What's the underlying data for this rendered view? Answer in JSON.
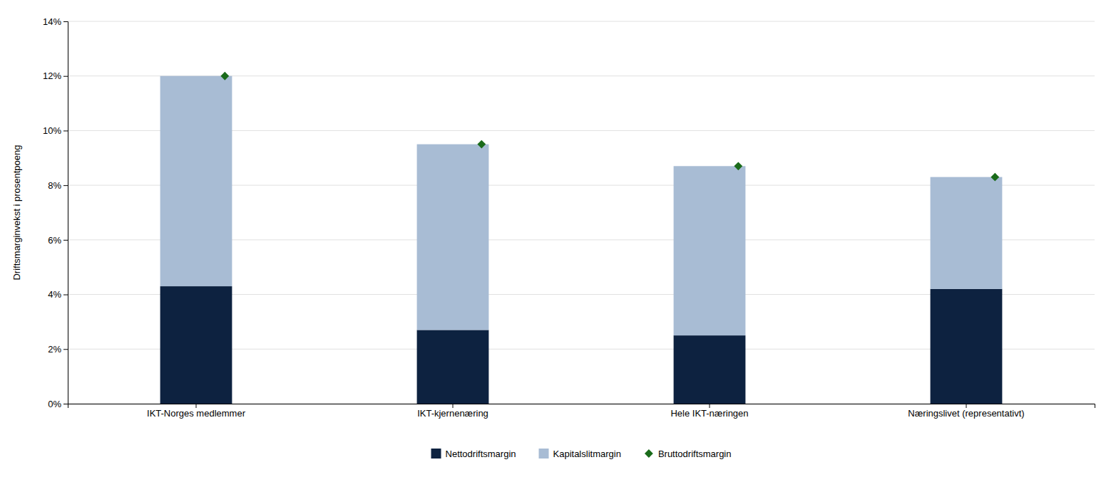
{
  "chart_data": {
    "type": "bar",
    "stacked": true,
    "categories": [
      "IKT-Norges medlemmer",
      "IKT-kjernenæring",
      "Hele IKT-næringen",
      "Næringslivet (representativt)"
    ],
    "series": [
      {
        "name": "Nettodriftsmargin",
        "type": "bar",
        "color": "#0d2240",
        "values": [
          4.3,
          2.7,
          2.5,
          4.2
        ]
      },
      {
        "name": "Kapitalslitmargin",
        "type": "bar",
        "color": "#a8bcd4",
        "values": [
          7.7,
          6.8,
          6.2,
          4.1
        ]
      },
      {
        "name": "Bruttodriftsmargin",
        "type": "scatter",
        "marker": "diamond",
        "color": "#1a6b1a",
        "values": [
          12.0,
          9.5,
          8.7,
          8.3
        ]
      }
    ],
    "ylabel": "Driftsmarginvekst i prosentpoeng",
    "ylim": [
      0,
      14
    ],
    "yticks": [
      {
        "value": 0,
        "label": "0%"
      },
      {
        "value": 2,
        "label": "2%"
      },
      {
        "value": 4,
        "label": "4%"
      },
      {
        "value": 6,
        "label": "6%"
      },
      {
        "value": 8,
        "label": "8%"
      },
      {
        "value": 10,
        "label": "10%"
      },
      {
        "value": 12,
        "label": "12%"
      },
      {
        "value": 14,
        "label": "14%"
      }
    ],
    "grid": true,
    "legend": "bottom"
  }
}
